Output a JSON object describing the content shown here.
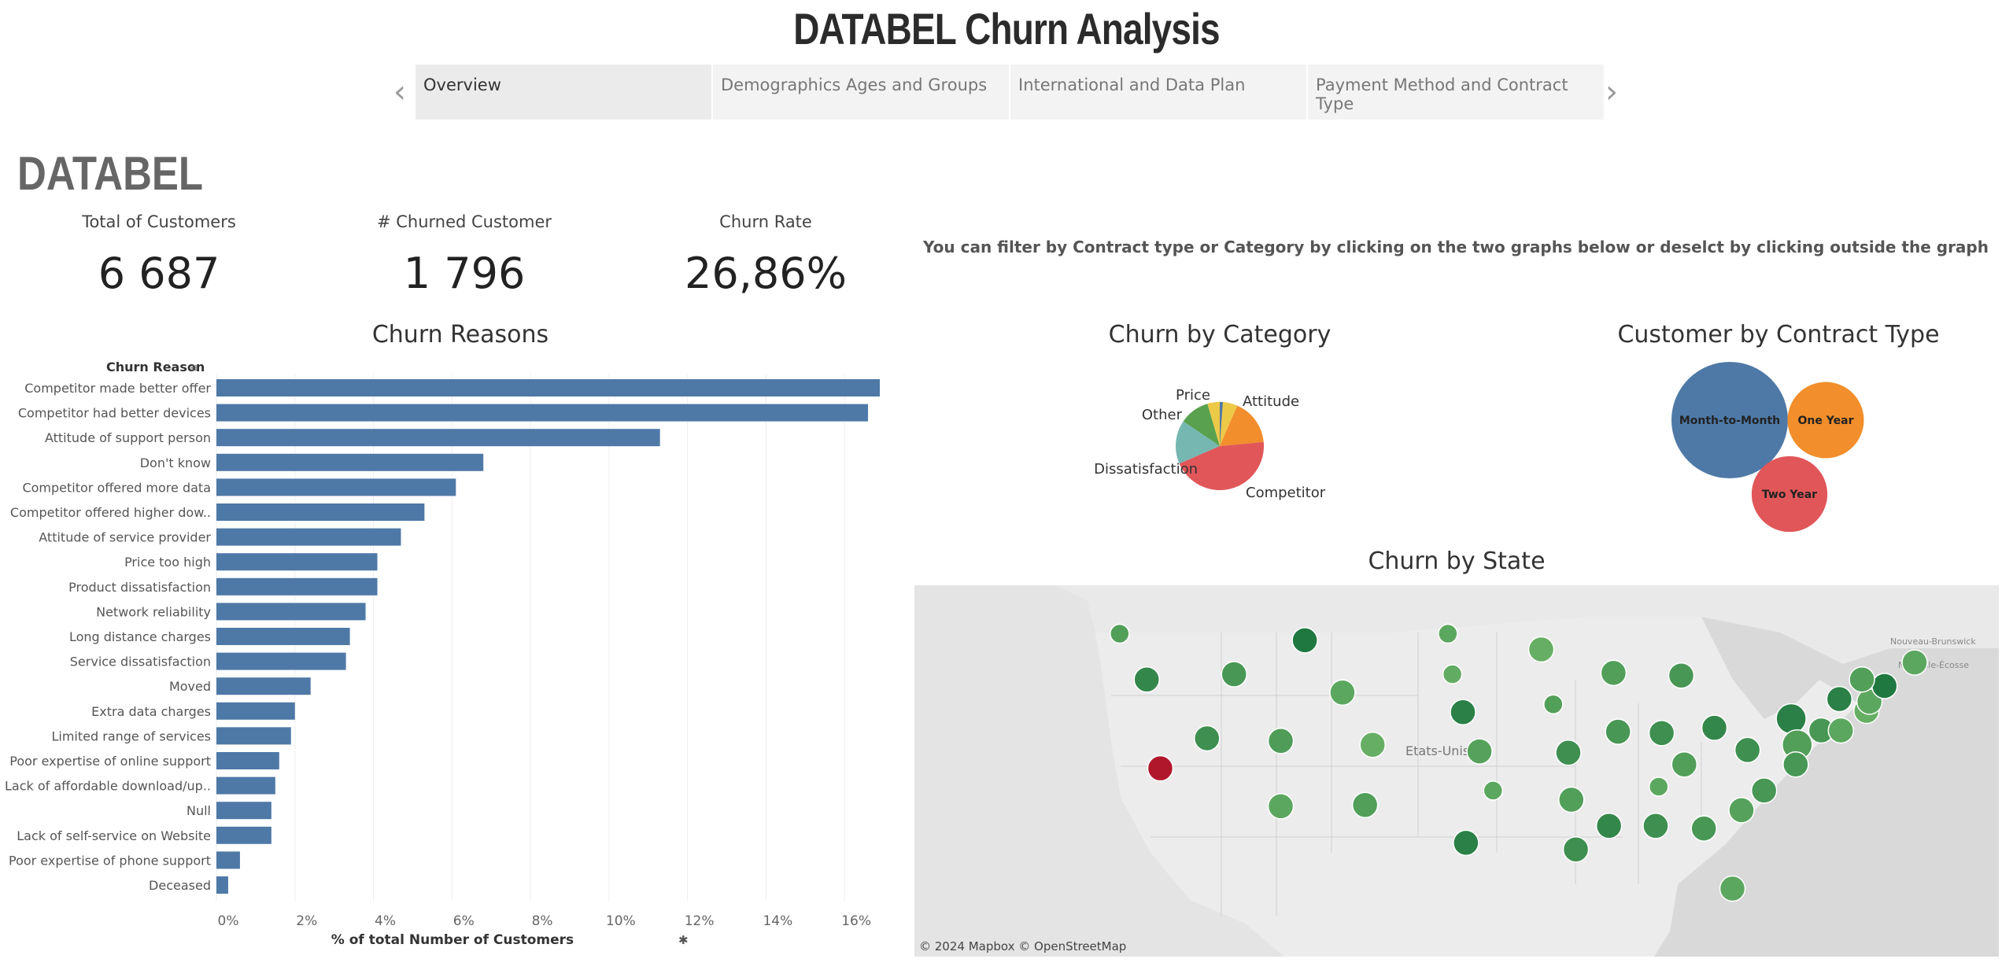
{
  "title": "DATABEL Churn Analysis",
  "tabs": [
    {
      "label": "Overview",
      "active": true
    },
    {
      "label": "Demographics Ages and Groups",
      "active": false
    },
    {
      "label": "International and Data Plan",
      "active": false
    },
    {
      "label": "Payment Method and Contract Type",
      "active": false
    }
  ],
  "nav": {
    "prev": "‹",
    "next": "›"
  },
  "brand": "DATABEL",
  "kpis": [
    {
      "label": "Total of Customers",
      "value": "6 687"
    },
    {
      "label": "# Churned Customer",
      "value": "1 796"
    },
    {
      "label": "Churn Rate",
      "value": "26,86%"
    }
  ],
  "hint": "You can filter by Contract type or Category by clicking on the two graphs below or deselct by clicking outside the graph",
  "churn_reasons": {
    "title": "Churn Reasons",
    "header": "Churn Reason",
    "xlabel": "% of total Number of Customers",
    "bar_color": "#4e79a7"
  },
  "churn_category": {
    "title": "Churn by Category"
  },
  "contract": {
    "title": "Customer by Contract Type"
  },
  "map": {
    "title": "Churn by State",
    "country_label": "Etats-Unis",
    "credit": "© 2024 Mapbox © OpenStreetMap"
  },
  "chart_data": [
    {
      "type": "bar",
      "orientation": "horizontal",
      "title": "Churn Reasons",
      "ylabel": "Churn Reason",
      "xlabel": "% of total Number of Customers",
      "xlim": [
        0,
        17
      ],
      "xticks": [
        "0%",
        "2%",
        "4%",
        "6%",
        "8%",
        "10%",
        "12%",
        "14%",
        "16%"
      ],
      "categories": [
        "Competitor made better offer",
        "Competitor had better devices",
        "Attitude of support person",
        "Don't know",
        "Competitor offered more data",
        "Competitor offered higher dow..",
        "Attitude of service provider",
        "Price too high",
        "Product dissatisfaction",
        "Network reliability",
        "Long distance charges",
        "Service dissatisfaction",
        "Moved",
        "Extra data charges",
        "Limited range of services",
        "Poor expertise of online support",
        "Lack of affordable download/up..",
        "Null",
        "Lack of self-service on Website",
        "Poor expertise of phone support",
        "Deceased"
      ],
      "values": [
        16.9,
        16.6,
        11.3,
        6.8,
        6.1,
        5.3,
        4.7,
        4.1,
        4.1,
        3.8,
        3.4,
        3.3,
        2.4,
        2.0,
        1.9,
        1.6,
        1.5,
        1.4,
        1.4,
        0.6,
        0.3
      ]
    },
    {
      "type": "pie",
      "title": "Churn by Category",
      "categories": [
        "Competitor",
        "Dissatisfaction",
        "Other",
        "Price",
        "Attitude"
      ],
      "values": [
        45,
        16,
        11,
        11,
        17
      ],
      "colors": [
        "#e15759",
        "#76b7b2",
        "#59a14f",
        "#edc948",
        "#f28e2b"
      ],
      "extra_slice_color": "#4e79a7"
    },
    {
      "type": "packed-bubble",
      "title": "Customer by Contract Type",
      "categories": [
        "Month-to-Month",
        "One Year",
        "Two Year"
      ],
      "values": [
        3610,
        1550,
        1527
      ],
      "colors": [
        "#4e79a7",
        "#f28e2b",
        "#e15759"
      ]
    },
    {
      "type": "map",
      "title": "Churn by State",
      "points_lonlat_size_churn": [
        [
          -122.3,
          47.5,
          "s",
          0.2
        ],
        [
          -120.5,
          44.0,
          "m",
          0.35
        ],
        [
          -114.7,
          44.4,
          "m",
          0.25
        ],
        [
          -110.0,
          47.0,
          "m",
          0.45
        ],
        [
          -100.5,
          47.5,
          "s",
          0.15
        ],
        [
          -100.2,
          44.4,
          "s",
          0.12
        ],
        [
          -99.5,
          41.5,
          "m",
          0.4
        ],
        [
          -94.3,
          46.3,
          "m",
          0.1
        ],
        [
          -89.5,
          44.5,
          "m",
          0.2
        ],
        [
          -85.0,
          44.3,
          "m",
          0.25
        ],
        [
          -107.5,
          43.0,
          "m",
          0.15
        ],
        [
          -116.5,
          39.5,
          "m",
          0.3
        ],
        [
          -111.6,
          39.3,
          "m",
          0.22
        ],
        [
          -105.5,
          39.0,
          "m",
          0.1
        ],
        [
          -98.4,
          38.5,
          "m",
          0.18
        ],
        [
          -93.5,
          42.1,
          "s",
          0.2
        ],
        [
          -92.5,
          38.4,
          "m",
          0.3
        ],
        [
          -89.2,
          40.0,
          "m",
          0.25
        ],
        [
          -86.3,
          39.9,
          "m",
          0.3
        ],
        [
          -82.8,
          40.3,
          "m",
          0.35
        ],
        [
          -80.6,
          38.6,
          "m",
          0.3
        ],
        [
          -77.7,
          41.0,
          "l",
          0.4
        ],
        [
          -77.3,
          39.0,
          "l",
          0.2
        ],
        [
          -75.7,
          40.1,
          "m",
          0.25
        ],
        [
          -74.4,
          40.1,
          "m",
          0.15
        ],
        [
          -72.7,
          41.6,
          "m",
          0.1
        ],
        [
          -72.5,
          42.3,
          "m",
          0.15
        ],
        [
          -71.5,
          43.5,
          "m",
          0.45
        ],
        [
          -73.0,
          44.0,
          "m",
          0.2
        ],
        [
          -69.5,
          45.3,
          "m",
          0.15
        ],
        [
          -74.5,
          42.5,
          "m",
          0.4
        ],
        [
          -79.5,
          35.5,
          "m",
          0.25
        ],
        [
          -81.0,
          34.0,
          "m",
          0.18
        ],
        [
          -83.5,
          32.6,
          "m",
          0.25
        ],
        [
          -86.7,
          32.8,
          "m",
          0.3
        ],
        [
          -89.8,
          32.8,
          "m",
          0.35
        ],
        [
          -92.0,
          31.0,
          "m",
          0.3
        ],
        [
          -86.5,
          35.8,
          "s",
          0.15
        ],
        [
          -92.3,
          34.8,
          "m",
          0.2
        ],
        [
          -97.5,
          35.5,
          "s",
          0.15
        ],
        [
          -99.3,
          31.5,
          "m",
          0.4
        ],
        [
          -106.0,
          34.4,
          "m",
          0.2
        ],
        [
          -111.6,
          34.3,
          "m",
          0.15
        ],
        [
          -119.6,
          37.2,
          "m",
          0.95
        ],
        [
          -81.6,
          28.0,
          "m",
          0.15
        ],
        [
          -84.8,
          37.5,
          "m",
          0.2
        ],
        [
          -77.4,
          37.5,
          "m",
          0.25
        ]
      ]
    }
  ]
}
